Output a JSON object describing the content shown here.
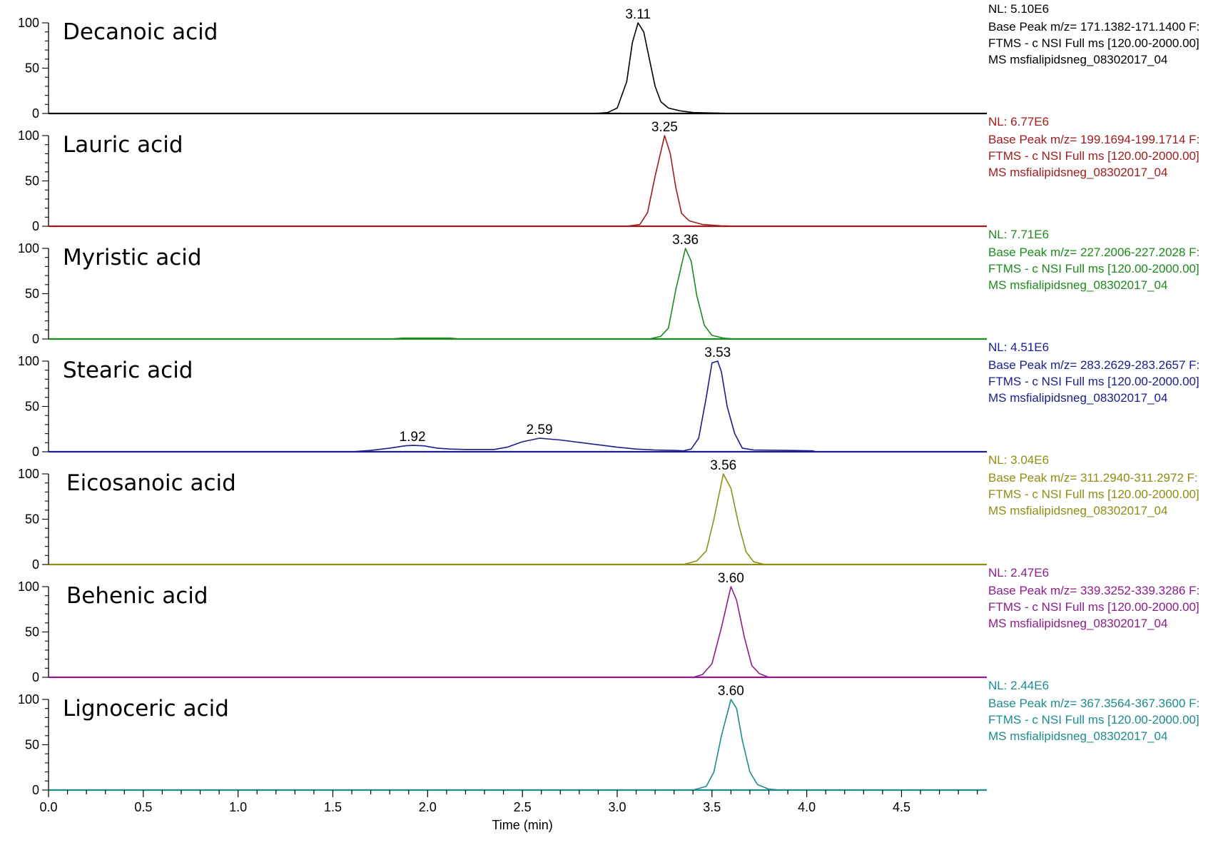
{
  "chart_data": {
    "type": "line",
    "x_axis": {
      "label": "Time (min)",
      "range": [
        0.0,
        4.95
      ],
      "major_ticks": [
        0.0,
        0.5,
        1.0,
        1.5,
        2.0,
        2.5,
        3.0,
        3.5,
        4.0,
        4.5
      ],
      "major_tick_labels": [
        "0.0",
        "0.5",
        "1.0",
        "1.5",
        "2.0",
        "2.5",
        "3.0",
        "3.5",
        "4.0",
        "4.5"
      ],
      "minor_step": 0.1
    },
    "y_axis": {
      "range": [
        0,
        100
      ],
      "tick_labels": [
        "0",
        "50",
        "100"
      ],
      "ticks": [
        0,
        50,
        100
      ],
      "minor_step": 10
    },
    "grid": false,
    "legend": "none",
    "series": [
      {
        "name": "Decanoic acid",
        "color": "#000000",
        "nl": "NL: 5.10E6",
        "info": [
          "Base Peak m/z= 171.1382-171.1400 F:",
          "FTMS - c NSI Full ms [120.00-2000.00]",
          "MS msfialipidsneg_08302017_04"
        ],
        "peak_labels": [
          {
            "text": "3.11",
            "x": 3.11,
            "y": 100
          }
        ],
        "points": [
          [
            0,
            0
          ],
          [
            2.88,
            0
          ],
          [
            2.95,
            1
          ],
          [
            3.0,
            6
          ],
          [
            3.05,
            35
          ],
          [
            3.08,
            78
          ],
          [
            3.11,
            100
          ],
          [
            3.14,
            90
          ],
          [
            3.17,
            60
          ],
          [
            3.2,
            30
          ],
          [
            3.23,
            13
          ],
          [
            3.27,
            6
          ],
          [
            3.33,
            3
          ],
          [
            3.4,
            1
          ],
          [
            3.52,
            0.5
          ],
          [
            3.6,
            0
          ],
          [
            4.95,
            0
          ]
        ]
      },
      {
        "name": "Lauric acid",
        "color": "#a01c1c",
        "nl": "NL: 6.77E6",
        "info": [
          "Base Peak m/z= 199.1694-199.1714 F:",
          "FTMS - c NSI Full ms [120.00-2000.00]",
          "MS msfialipidsneg_08302017_04"
        ],
        "peak_labels": [
          {
            "text": "3.25",
            "x": 3.25,
            "y": 100
          }
        ],
        "points": [
          [
            0,
            0
          ],
          [
            3.05,
            0
          ],
          [
            3.12,
            2
          ],
          [
            3.16,
            15
          ],
          [
            3.2,
            55
          ],
          [
            3.25,
            100
          ],
          [
            3.28,
            80
          ],
          [
            3.31,
            42
          ],
          [
            3.34,
            14
          ],
          [
            3.38,
            6
          ],
          [
            3.45,
            2
          ],
          [
            3.55,
            0.5
          ],
          [
            3.62,
            0
          ],
          [
            4.95,
            0
          ]
        ]
      },
      {
        "name": "Myristic acid",
        "color": "#1e8a1e",
        "nl": "NL: 7.71E6",
        "info": [
          "Base Peak m/z= 227.2006-227.2028 F:",
          "FTMS - c NSI Full ms [120.00-2000.00]",
          "MS msfialipidsneg_08302017_04"
        ],
        "peak_labels": [
          {
            "text": "3.36",
            "x": 3.36,
            "y": 100
          }
        ],
        "points": [
          [
            0,
            0
          ],
          [
            1.8,
            0
          ],
          [
            1.87,
            1
          ],
          [
            2.12,
            1
          ],
          [
            2.17,
            0
          ],
          [
            3.17,
            0
          ],
          [
            3.23,
            3
          ],
          [
            3.27,
            12
          ],
          [
            3.31,
            55
          ],
          [
            3.36,
            100
          ],
          [
            3.39,
            86
          ],
          [
            3.42,
            48
          ],
          [
            3.46,
            15
          ],
          [
            3.5,
            4
          ],
          [
            3.56,
            1
          ],
          [
            3.62,
            0
          ],
          [
            4.95,
            0
          ]
        ]
      },
      {
        "name": "Stearic acid",
        "color": "#1c1c8c",
        "nl": "NL: 4.51E6",
        "info": [
          "Base Peak m/z= 283.2629-283.2657 F:",
          "FTMS - c NSI Full ms [120.00-2000.00]",
          "MS msfialipidsneg_08302017_04"
        ],
        "peak_labels": [
          {
            "text": "1.92",
            "x": 1.92,
            "y": 7
          },
          {
            "text": "2.59",
            "x": 2.59,
            "y": 15
          },
          {
            "text": "3.53",
            "x": 3.53,
            "y": 100
          }
        ],
        "points": [
          [
            0,
            0
          ],
          [
            1.6,
            0
          ],
          [
            1.7,
            1.5
          ],
          [
            1.8,
            4
          ],
          [
            1.88,
            6.5
          ],
          [
            1.92,
            7
          ],
          [
            1.98,
            6.5
          ],
          [
            2.05,
            4
          ],
          [
            2.12,
            3
          ],
          [
            2.2,
            2.5
          ],
          [
            2.35,
            2.5
          ],
          [
            2.42,
            5
          ],
          [
            2.5,
            11
          ],
          [
            2.59,
            15
          ],
          [
            2.7,
            13
          ],
          [
            2.85,
            9
          ],
          [
            3.0,
            5
          ],
          [
            3.1,
            3
          ],
          [
            3.2,
            2
          ],
          [
            3.3,
            1.5
          ],
          [
            3.35,
            1
          ],
          [
            3.39,
            3
          ],
          [
            3.43,
            15
          ],
          [
            3.47,
            60
          ],
          [
            3.5,
            98
          ],
          [
            3.53,
            100
          ],
          [
            3.55,
            88
          ],
          [
            3.58,
            50
          ],
          [
            3.62,
            20
          ],
          [
            3.66,
            4
          ],
          [
            3.72,
            2
          ],
          [
            3.9,
            1.5
          ],
          [
            4.03,
            1
          ],
          [
            4.05,
            0
          ],
          [
            4.95,
            0
          ]
        ]
      },
      {
        "name": "Eicosanoic acid",
        "color": "#8e8e12",
        "nl": "NL: 3.04E6",
        "info": [
          "Base Peak m/z= 311.2940-311.2972 F:",
          "FTMS - c NSI Full ms [120.00-2000.00]",
          "MS msfialipidsneg_08302017_04"
        ],
        "peak_labels": [
          {
            "text": "3.56",
            "x": 3.56,
            "y": 100
          }
        ],
        "points": [
          [
            0,
            0
          ],
          [
            3.35,
            0
          ],
          [
            3.42,
            4
          ],
          [
            3.47,
            15
          ],
          [
            3.51,
            50
          ],
          [
            3.56,
            100
          ],
          [
            3.6,
            84
          ],
          [
            3.64,
            45
          ],
          [
            3.68,
            14
          ],
          [
            3.72,
            3
          ],
          [
            3.78,
            0
          ],
          [
            4.95,
            0
          ]
        ]
      },
      {
        "name": "Behenic acid",
        "color": "#8c1c8c",
        "nl": "NL: 2.47E6",
        "info": [
          "Base Peak m/z= 339.3252-339.3286 F:",
          "FTMS - c NSI Full ms [120.00-2000.00]",
          "MS msfialipidsneg_08302017_04"
        ],
        "peak_labels": [
          {
            "text": "3.60",
            "x": 3.6,
            "y": 100
          }
        ],
        "points": [
          [
            0,
            0
          ],
          [
            3.4,
            0
          ],
          [
            3.45,
            3
          ],
          [
            3.5,
            15
          ],
          [
            3.55,
            55
          ],
          [
            3.6,
            100
          ],
          [
            3.63,
            85
          ],
          [
            3.67,
            45
          ],
          [
            3.71,
            13
          ],
          [
            3.75,
            4
          ],
          [
            3.8,
            0
          ],
          [
            4.95,
            0
          ]
        ]
      },
      {
        "name": "Lignoceric acid",
        "color": "#1c8c8c",
        "nl": "NL: 2.44E6",
        "info": [
          "Base Peak m/z= 367.3564-367.3600 F:",
          "FTMS - c NSI Full ms [120.00-2000.00]",
          "MS msfialipidsneg_08302017_04"
        ],
        "peak_labels": [
          {
            "text": "3.60",
            "x": 3.6,
            "y": 100
          }
        ],
        "points": [
          [
            0,
            0
          ],
          [
            3.4,
            0
          ],
          [
            3.47,
            4
          ],
          [
            3.51,
            20
          ],
          [
            3.55,
            60
          ],
          [
            3.6,
            100
          ],
          [
            3.63,
            90
          ],
          [
            3.66,
            55
          ],
          [
            3.7,
            20
          ],
          [
            3.74,
            6
          ],
          [
            3.8,
            1
          ],
          [
            3.86,
            0
          ],
          [
            4.95,
            0
          ]
        ]
      }
    ]
  }
}
